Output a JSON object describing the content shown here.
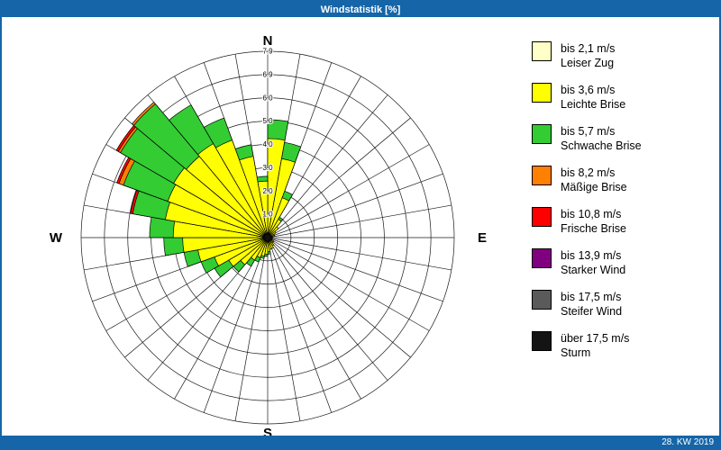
{
  "window": {
    "title": "Windstatistik [%]",
    "footer": "28. KW 2019",
    "bar_color": "#1565a8"
  },
  "compass": {
    "north": "N",
    "east": "E",
    "south": "S",
    "west": "W"
  },
  "legend": {
    "items": [
      {
        "range": "bis 2,1 m/s",
        "name": "Leiser Zug",
        "color": "#ffffc8"
      },
      {
        "range": "bis 3,6 m/s",
        "name": "Leichte Brise",
        "color": "#ffff00"
      },
      {
        "range": "bis 5,7 m/s",
        "name": "Schwache Brise",
        "color": "#33cc33"
      },
      {
        "range": "bis 8,2 m/s",
        "name": "Mäßige Brise",
        "color": "#ff8000"
      },
      {
        "range": "bis 10,8 m/s",
        "name": "Frische Brise",
        "color": "#ff0000"
      },
      {
        "range": "bis 13,9 m/s",
        "name": "Starker Wind",
        "color": "#800080"
      },
      {
        "range": "bis 17,5 m/s",
        "name": "Steifer Wind",
        "color": "#5a5a5a"
      },
      {
        "range": "über 17,5 m/s",
        "name": "Sturm",
        "color": "#141414"
      }
    ]
  },
  "chart_data": {
    "type": "windrose",
    "title": "Windstatistik [%]",
    "unit": "%",
    "max_radius": 7.9,
    "ring_count": 8,
    "ring_labels": [
      "1.0",
      "2.0",
      "3.0",
      "4.0",
      "5.0",
      "6.0",
      "6.9",
      "7.9"
    ],
    "sector_width_deg": 10,
    "classes": [
      {
        "label": "bis 2,1 m/s Leiser Zug",
        "color": "#ffffc8"
      },
      {
        "label": "bis 3,6 m/s Leichte Brise",
        "color": "#ffff00"
      },
      {
        "label": "bis 5,7 m/s Schwache Brise",
        "color": "#33cc33"
      },
      {
        "label": "bis 8,2 m/s Mäßige Brise",
        "color": "#ff8000"
      },
      {
        "label": "bis 10,8 m/s Frische Brise",
        "color": "#ff0000"
      },
      {
        "label": "bis 13,9 m/s Starker Wind",
        "color": "#800080"
      },
      {
        "label": "bis 17,5 m/s Steifer Wind",
        "color": "#5a5a5a"
      },
      {
        "label": "über 17,5 m/s Sturm",
        "color": "#141414"
      }
    ],
    "sectors": [
      {
        "start_deg": 0,
        "stack": [
          0.2,
          4.0,
          0.8
        ]
      },
      {
        "start_deg": 10,
        "stack": [
          0.2,
          3.2,
          0.7
        ]
      },
      {
        "start_deg": 20,
        "stack": [
          0.1,
          1.7,
          0.3
        ]
      },
      {
        "start_deg": 30,
        "stack": [
          0.1,
          0.8,
          0.1
        ]
      },
      {
        "start_deg": 40,
        "stack": [
          0.1,
          0.5
        ]
      },
      {
        "start_deg": 50,
        "stack": [
          0.1,
          0.3
        ]
      },
      {
        "start_deg": 60,
        "stack": [
          0.1,
          0.2
        ]
      },
      {
        "start_deg": 70,
        "stack": [
          0.1,
          0.2
        ]
      },
      {
        "start_deg": 80,
        "stack": [
          0.1,
          0.1
        ]
      },
      {
        "start_deg": 90,
        "stack": [
          0.1,
          0.1
        ]
      },
      {
        "start_deg": 100,
        "stack": [
          0.1,
          0.1
        ]
      },
      {
        "start_deg": 110,
        "stack": [
          0.1,
          0.1
        ]
      },
      {
        "start_deg": 120,
        "stack": [
          0.1,
          0.2
        ]
      },
      {
        "start_deg": 130,
        "stack": [
          0.1,
          0.2
        ]
      },
      {
        "start_deg": 140,
        "stack": [
          0.1,
          0.3
        ]
      },
      {
        "start_deg": 150,
        "stack": [
          0.1,
          0.4
        ]
      },
      {
        "start_deg": 160,
        "stack": [
          0.1,
          0.4
        ]
      },
      {
        "start_deg": 170,
        "stack": [
          0.1,
          0.5,
          0.1
        ]
      },
      {
        "start_deg": 180,
        "stack": [
          0.1,
          0.6,
          0.1
        ]
      },
      {
        "start_deg": 190,
        "stack": [
          0.1,
          0.7,
          0.1
        ]
      },
      {
        "start_deg": 200,
        "stack": [
          0.1,
          0.8,
          0.2
        ]
      },
      {
        "start_deg": 210,
        "stack": [
          0.1,
          1.0,
          0.3
        ]
      },
      {
        "start_deg": 220,
        "stack": [
          0.1,
          1.4,
          0.4
        ]
      },
      {
        "start_deg": 230,
        "stack": [
          0.1,
          1.8,
          0.7
        ]
      },
      {
        "start_deg": 240,
        "stack": [
          0.1,
          2.3,
          0.6
        ]
      },
      {
        "start_deg": 250,
        "stack": [
          0.2,
          2.8,
          0.6
        ]
      },
      {
        "start_deg": 260,
        "stack": [
          0.2,
          3.4,
          0.8
        ]
      },
      {
        "start_deg": 270,
        "stack": [
          0.2,
          3.8,
          1.0
        ]
      },
      {
        "start_deg": 280,
        "stack": [
          0.2,
          4.2,
          1.4,
          0,
          0.1
        ]
      },
      {
        "start_deg": 290,
        "stack": [
          0.2,
          4.3,
          2.0,
          0.2,
          0.1
        ]
      },
      {
        "start_deg": 300,
        "stack": [
          0.2,
          4.4,
          2.6,
          0.1,
          0.1
        ]
      },
      {
        "start_deg": 310,
        "stack": [
          0.2,
          4.3,
          2.9,
          0.1
        ]
      },
      {
        "start_deg": 320,
        "stack": [
          0.2,
          4.4,
          1.9
        ]
      },
      {
        "start_deg": 330,
        "stack": [
          0.2,
          4.2,
          1.0
        ]
      },
      {
        "start_deg": 340,
        "stack": [
          0.2,
          3.3,
          0.5
        ]
      },
      {
        "start_deg": 350,
        "stack": [
          0.2,
          2.2,
          0.2
        ]
      }
    ]
  }
}
